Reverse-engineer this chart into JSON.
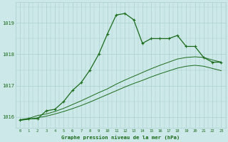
{
  "x": [
    0,
    1,
    2,
    3,
    4,
    5,
    6,
    7,
    8,
    9,
    10,
    11,
    12,
    13,
    14,
    15,
    16,
    17,
    18,
    19,
    20,
    21,
    22,
    23
  ],
  "main_line": [
    1015.9,
    1015.95,
    1015.95,
    1016.2,
    1016.25,
    1016.5,
    1016.85,
    1017.1,
    1017.5,
    1018.0,
    1018.65,
    1019.25,
    1019.3,
    1019.1,
    1018.35,
    1018.5,
    1018.5,
    1018.5,
    1018.6,
    1018.25,
    1018.25,
    1017.9,
    1017.75,
    1017.75
  ],
  "line2": [
    1015.92,
    1015.96,
    1016.05,
    1016.1,
    1016.18,
    1016.28,
    1016.4,
    1016.52,
    1016.65,
    1016.78,
    1016.9,
    1017.05,
    1017.18,
    1017.3,
    1017.42,
    1017.54,
    1017.65,
    1017.75,
    1017.85,
    1017.9,
    1017.92,
    1017.9,
    1017.82,
    1017.75
  ],
  "line3": [
    1015.9,
    1015.93,
    1015.98,
    1016.03,
    1016.1,
    1016.18,
    1016.27,
    1016.37,
    1016.48,
    1016.6,
    1016.72,
    1016.84,
    1016.96,
    1017.07,
    1017.17,
    1017.28,
    1017.38,
    1017.47,
    1017.56,
    1017.62,
    1017.65,
    1017.62,
    1017.55,
    1017.48
  ],
  "bg_color": "#cce8e8",
  "grid_color": "#aacfcf",
  "line_color": "#1a6b1a",
  "ylabel_ticks": [
    1016,
    1017,
    1018,
    1019
  ],
  "xlabel_label": "Graphe pression niveau de la mer (hPa)",
  "ylim": [
    1015.65,
    1019.65
  ],
  "xlim": [
    -0.5,
    23.5
  ],
  "label_color": "#1a6b1a"
}
